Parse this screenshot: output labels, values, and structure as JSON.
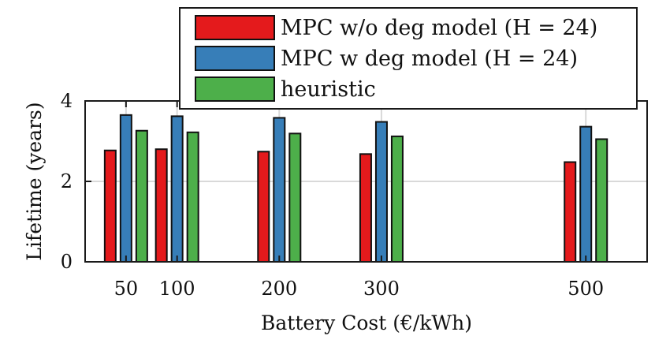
{
  "chart_data": {
    "type": "bar",
    "title": "",
    "xlabel": "Battery Cost (€/kWh)",
    "ylabel": "Lifetime (years)",
    "x": [
      50,
      100,
      200,
      300,
      500
    ],
    "x_tick_labels": [
      "50",
      "100",
      "200",
      "300",
      "500"
    ],
    "xlim": [
      10,
      560
    ],
    "ylim": [
      0,
      4
    ],
    "y_ticks": [
      0,
      2,
      4
    ],
    "y_tick_labels": [
      "0",
      "2",
      "4"
    ],
    "grid": true,
    "legend_position": "top-right",
    "series": [
      {
        "name": "MPC w/o deg model",
        "legend_label": "MPC w/o deg model (H = 24)",
        "color": "#e41a1c",
        "values": [
          2.77,
          2.8,
          2.74,
          2.68,
          2.48
        ]
      },
      {
        "name": "MPC w deg model",
        "legend_label": "MPC w deg model (H = 24)",
        "color": "#377eb8",
        "values": [
          3.65,
          3.62,
          3.58,
          3.48,
          3.36
        ]
      },
      {
        "name": "heuristic",
        "legend_label": "heuristic",
        "color": "#4daf4a",
        "values": [
          3.26,
          3.22,
          3.19,
          3.12,
          3.05
        ]
      }
    ]
  }
}
